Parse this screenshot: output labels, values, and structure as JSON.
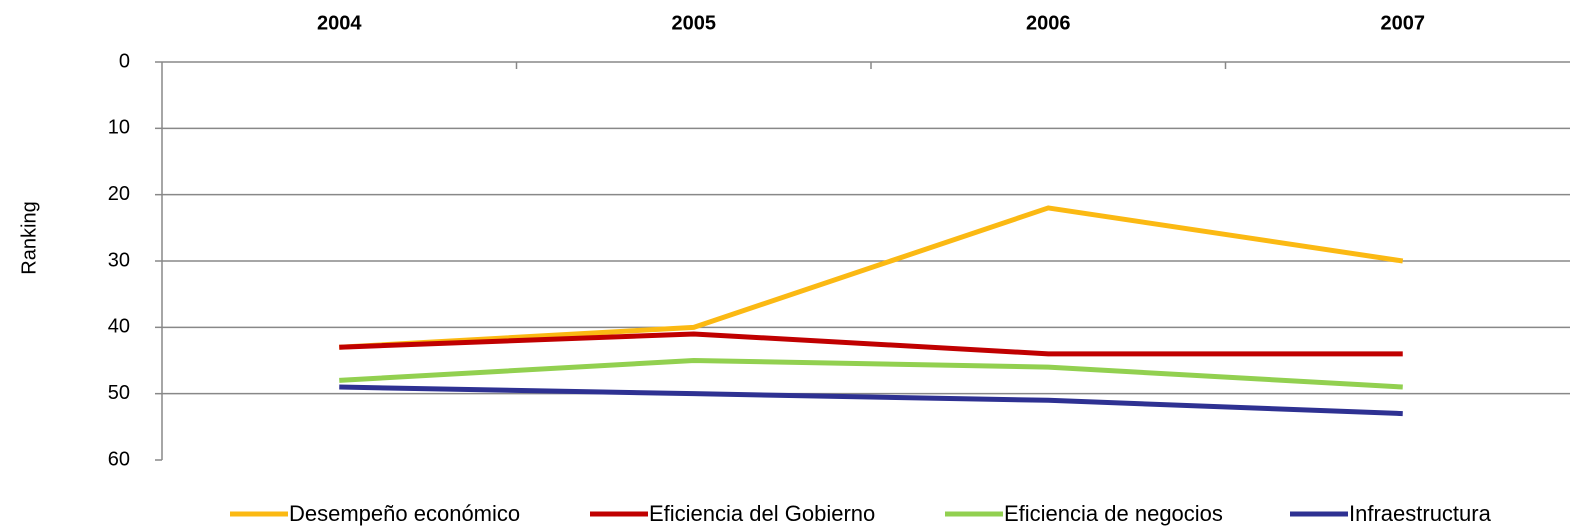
{
  "chart_data": {
    "type": "line",
    "y_label": "Ranking",
    "categories": [
      "2004",
      "2005",
      "2006",
      "2007"
    ],
    "series": [
      {
        "name": "Desempeño económico",
        "color": "#fbb913",
        "values": [
          43,
          40,
          22,
          30
        ]
      },
      {
        "name": "Eficiencia del Gobierno",
        "color": "#c00000",
        "values": [
          43,
          41,
          44,
          44
        ]
      },
      {
        "name": "Eficiencia de negocios",
        "color": "#92d050",
        "values": [
          48,
          45,
          46,
          49
        ]
      },
      {
        "name": "Infraestructura",
        "color": "#2e3192",
        "values": [
          49,
          50,
          51,
          53
        ]
      }
    ],
    "ylim": [
      0,
      60
    ],
    "yticks": [
      0,
      10,
      20,
      30,
      40,
      50,
      60
    ],
    "y_inverted": true,
    "grid": true,
    "legend": "bottom"
  }
}
